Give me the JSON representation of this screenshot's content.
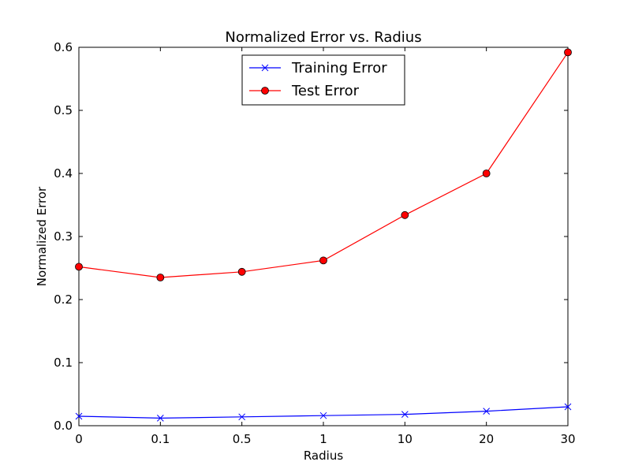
{
  "chart_data": {
    "type": "line",
    "title": "Normalized Error vs. Radius",
    "xlabel": "Radius",
    "ylabel": "Normalized Error",
    "categories": [
      "0",
      "0.1",
      "0.5",
      "1",
      "10",
      "20",
      "30"
    ],
    "ylim": [
      0,
      0.6
    ],
    "yticks": [
      "0.0",
      "0.1",
      "0.2",
      "0.3",
      "0.4",
      "0.5",
      "0.6"
    ],
    "ytick_values": [
      0,
      0.1,
      0.2,
      0.3,
      0.4,
      0.5,
      0.6
    ],
    "grid": false,
    "legend_position": "top-center",
    "series": [
      {
        "name": "Training Error",
        "color": "#0000ff",
        "marker": "x",
        "values": [
          0.015,
          0.012,
          0.014,
          0.016,
          0.018,
          0.023,
          0.03
        ]
      },
      {
        "name": "Test Error",
        "color": "#ff0000",
        "marker": "circle",
        "values": [
          0.252,
          0.235,
          0.244,
          0.262,
          0.334,
          0.4,
          0.592
        ]
      }
    ]
  }
}
